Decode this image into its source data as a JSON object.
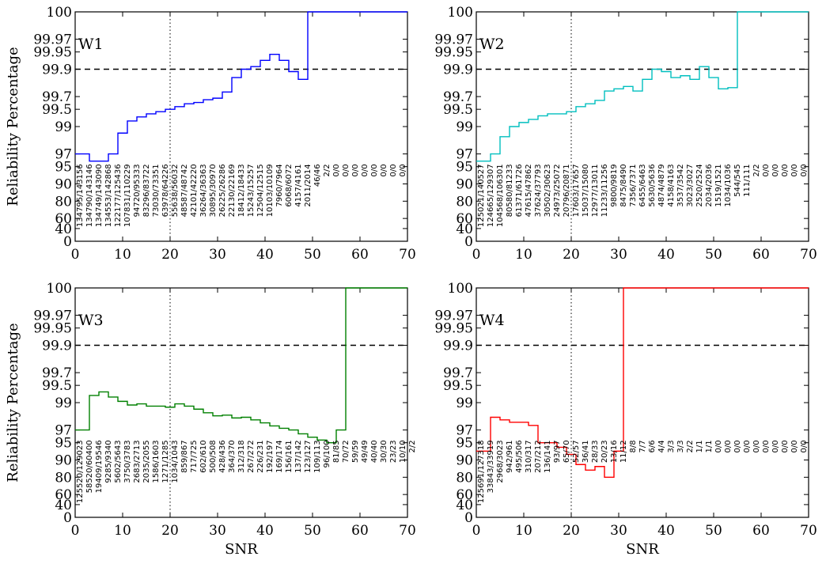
{
  "figure": {
    "ylabel": "Reliability Percentage",
    "xlabel": "SNR"
  },
  "chart_data": [
    {
      "type": "line",
      "step": true,
      "label": "W1",
      "color": "#0000ff",
      "x": [
        0,
        1,
        2,
        3,
        4,
        5,
        6,
        7,
        8,
        9,
        10,
        11,
        12,
        13,
        14,
        15,
        16,
        17,
        18,
        19,
        20,
        21,
        22,
        23,
        24,
        25,
        26,
        27,
        28,
        29,
        30,
        31,
        32,
        33,
        34,
        35,
        36,
        37,
        38,
        39,
        40,
        41,
        42,
        43,
        44,
        45,
        46,
        47,
        48,
        49,
        50,
        51,
        52,
        53,
        54,
        55,
        56,
        57,
        58,
        59,
        60,
        61,
        62,
        63,
        64,
        65,
        66,
        67,
        68,
        69
      ],
      "reliability": [
        97,
        97,
        97,
        96,
        96,
        96,
        96,
        97,
        97,
        98.7,
        98.7,
        99.2,
        99.2,
        99.32,
        99.32,
        99.4,
        99.4,
        99.45,
        99.45,
        99.5,
        99.5,
        99.55,
        99.55,
        99.6,
        99.6,
        99.62,
        99.62,
        99.66,
        99.66,
        99.68,
        99.68,
        99.75,
        99.75,
        99.86,
        99.86,
        99.9,
        99.9,
        99.91,
        99.91,
        99.93,
        99.93,
        99.945,
        99.945,
        99.93,
        99.93,
        99.89,
        99.89,
        99.85,
        99.85,
        100,
        100,
        100,
        100,
        100,
        100,
        100,
        100,
        100,
        100,
        100,
        100,
        100,
        100,
        100,
        100,
        100,
        100,
        100,
        100,
        100
      ],
      "counts": [
        "134795/143156",
        "134790/143146",
        "134749/143090",
        "134553/142868",
        "122177/125436",
        "107831/110229",
        "94720/95333",
        "83296/83722",
        "73030/73351",
        "63978/64226",
        "55638/56032",
        "48587/48742",
        "42101/42220",
        "36264/36363",
        "30895/30970",
        "26225/26286",
        "22130/22169",
        "18412/18433",
        "15243/15257",
        "12504/12515",
        "10103/10109",
        "7960/7964",
        "6068/6072",
        "4157/4161",
        "2011/2014",
        "46/46",
        "2/2",
        "0/0",
        "0/0",
        "0/0",
        "0/0",
        "0/0",
        "0/0",
        "0/0",
        "0/0"
      ]
    },
    {
      "type": "line",
      "step": true,
      "label": "W2",
      "color": "#00bfbf",
      "x": [
        0,
        1,
        2,
        3,
        4,
        5,
        6,
        7,
        8,
        9,
        10,
        11,
        12,
        13,
        14,
        15,
        16,
        17,
        18,
        19,
        20,
        21,
        22,
        23,
        24,
        25,
        26,
        27,
        28,
        29,
        30,
        31,
        32,
        33,
        34,
        35,
        36,
        37,
        38,
        39,
        40,
        41,
        42,
        43,
        44,
        45,
        46,
        47,
        48,
        49,
        50,
        51,
        52,
        53,
        54,
        55,
        56,
        57,
        58,
        59,
        60,
        61,
        62,
        63,
        64,
        65,
        66,
        67,
        68,
        69
      ],
      "reliability": [
        96,
        96,
        96,
        97,
        97,
        98.5,
        98.5,
        99,
        99,
        99.15,
        99.15,
        99.25,
        99.25,
        99.35,
        99.35,
        99.4,
        99.4,
        99.4,
        99.4,
        99.45,
        99.45,
        99.55,
        99.55,
        99.6,
        99.6,
        99.65,
        99.65,
        99.76,
        99.76,
        99.78,
        99.78,
        99.8,
        99.8,
        99.76,
        99.76,
        99.85,
        99.85,
        99.9,
        99.9,
        99.89,
        99.89,
        99.86,
        99.86,
        99.87,
        99.87,
        99.85,
        99.85,
        99.91,
        99.91,
        99.86,
        99.86,
        99.78,
        99.78,
        99.79,
        99.79,
        100,
        100,
        100,
        100,
        100,
        100,
        100,
        100,
        100,
        100,
        100,
        100,
        100,
        100,
        100
      ],
      "counts": [
        "125021/140527",
        "124665/129307",
        "104568/106301",
        "80580/81233",
        "61371/61726",
        "47615/47862",
        "37624/37793",
        "30502/30623",
        "24973/25072",
        "20796/20871",
        "17603/17657",
        "15037/15080",
        "12977/13011",
        "11233/11256",
        "9800/9819",
        "8475/8490",
        "7356/7371",
        "6455/6463",
        "5630/5636",
        "4874/4879",
        "4158/4163",
        "3537/3542",
        "3023/3027",
        "2520/2524",
        "2034/2036",
        "1519/1521",
        "1034/1036",
        "544/545",
        "111/111",
        "2/2",
        "0/0",
        "0/0",
        "0/0",
        "0/0",
        "0/0"
      ]
    },
    {
      "type": "line",
      "step": true,
      "label": "W3",
      "color": "#008000",
      "x": [
        0,
        1,
        2,
        3,
        4,
        5,
        6,
        7,
        8,
        9,
        10,
        11,
        12,
        13,
        14,
        15,
        16,
        17,
        18,
        19,
        20,
        21,
        22,
        23,
        24,
        25,
        26,
        27,
        28,
        29,
        30,
        31,
        32,
        33,
        34,
        35,
        36,
        37,
        38,
        39,
        40,
        41,
        42,
        43,
        44,
        45,
        46,
        47,
        48,
        49,
        50,
        51,
        52,
        53,
        54,
        55,
        56,
        57,
        58,
        59,
        60,
        61,
        62,
        63,
        64,
        65,
        66,
        67,
        68,
        69
      ],
      "reliability": [
        97,
        97,
        97,
        99.25,
        99.25,
        99.35,
        99.35,
        99.2,
        99.2,
        99.05,
        99.05,
        98.9,
        98.9,
        98.95,
        98.95,
        98.85,
        98.85,
        98.85,
        98.85,
        98.8,
        98.8,
        98.95,
        98.95,
        98.85,
        98.85,
        98.7,
        98.7,
        98.5,
        98.5,
        98.3,
        98.3,
        98.35,
        98.35,
        98.15,
        98.15,
        98.2,
        98.2,
        98,
        98,
        97.75,
        97.75,
        97.45,
        97.45,
        97.2,
        97.2,
        97,
        97,
        96.5,
        96.5,
        96,
        96,
        95.5,
        95.5,
        95,
        95,
        97,
        97,
        100,
        100,
        100,
        100,
        100,
        100,
        100,
        100,
        100,
        100,
        100,
        100,
        100
      ],
      "counts": [
        "125520/129023",
        "58520/60400",
        "19409/19546",
        "9285/9340",
        "5602/5643",
        "3750/3783",
        "2683/2713",
        "2035/2055",
        "1586/1603",
        "1271/1285",
        "1034/1043",
        "859/867",
        "717/725",
        "602/610",
        "500/508",
        "428/436",
        "364/370",
        "312/318",
        "267/272",
        "226/231",
        "192/197",
        "169/174",
        "156/161",
        "137/142",
        "123/127",
        "109/113",
        "96/100",
        "81/85",
        "70/72",
        "59/59",
        "49/49",
        "40/40",
        "30/30",
        "23/23",
        "10/10",
        "2/2"
      ]
    },
    {
      "type": "line",
      "step": true,
      "label": "W4",
      "color": "#ff0000",
      "x": [
        0,
        1,
        2,
        3,
        4,
        5,
        6,
        7,
        8,
        9,
        10,
        11,
        12,
        13,
        14,
        15,
        16,
        17,
        18,
        19,
        20,
        21,
        22,
        23,
        24,
        25,
        26,
        27,
        28,
        29,
        30,
        31,
        32,
        33,
        34,
        35,
        36,
        37,
        38,
        39,
        40,
        41,
        42,
        43,
        44,
        45,
        46,
        47,
        48,
        49,
        50,
        51,
        52,
        53,
        54,
        55,
        56,
        57,
        58,
        59,
        60,
        61,
        62,
        63,
        64,
        65,
        66,
        67,
        68,
        69
      ],
      "reliability": [
        93,
        93,
        93,
        98.2,
        98.2,
        98,
        98,
        97.8,
        97.8,
        97.8,
        97.8,
        97.5,
        97.5,
        95,
        95,
        95,
        95,
        94,
        94,
        92,
        92,
        88,
        88,
        85,
        85,
        87,
        87,
        80,
        80,
        93,
        93,
        100,
        100,
        100,
        100,
        100,
        100,
        100,
        100,
        100,
        100,
        100,
        100,
        100,
        100,
        100,
        100,
        100,
        100,
        100,
        100,
        100,
        100,
        100,
        100,
        100,
        100,
        100,
        100,
        100,
        100,
        100,
        100,
        100,
        100,
        100,
        100,
        100,
        100,
        100
      ],
      "counts": [
        "125691/127318",
        "33843/33919",
        "2968/3023",
        "942/961",
        "495/506",
        "310/317",
        "207/212",
        "136/141",
        "93/97",
        "65/70",
        "52/57",
        "36/41",
        "28/33",
        "20/23",
        "13/16",
        "11/12",
        "8/8",
        "7/7",
        "6/6",
        "4/4",
        "3/3",
        "3/3",
        "2/2",
        "1/1",
        "1/1",
        "0/0",
        "0/0",
        "0/0",
        "0/0",
        "0/0",
        "0/0",
        "0/0",
        "0/0",
        "0/0",
        "0/0"
      ]
    }
  ],
  "axes": {
    "xlim": [
      0,
      70
    ],
    "x_ticks": [
      "0",
      "10",
      "20",
      "30",
      "40",
      "50",
      "60",
      "70"
    ],
    "y_ticks": [
      "0",
      "40",
      "60",
      "80",
      "90",
      "95",
      "97",
      "99",
      "99.5",
      "99.7",
      "99.9",
      "99.95",
      "99.97",
      "100"
    ],
    "y_tick_values": [
      0,
      40,
      60,
      80,
      90,
      95,
      97,
      99,
      99.5,
      99.7,
      99.9,
      99.95,
      99.97,
      100
    ],
    "y_scale": "reliability (nonlinear: log of 100 - y)",
    "reference_lines": [
      {
        "orientation": "horizontal",
        "value": 99.9,
        "style": "dashed"
      },
      {
        "orientation": "vertical",
        "value": 20,
        "style": "dotted"
      }
    ]
  }
}
